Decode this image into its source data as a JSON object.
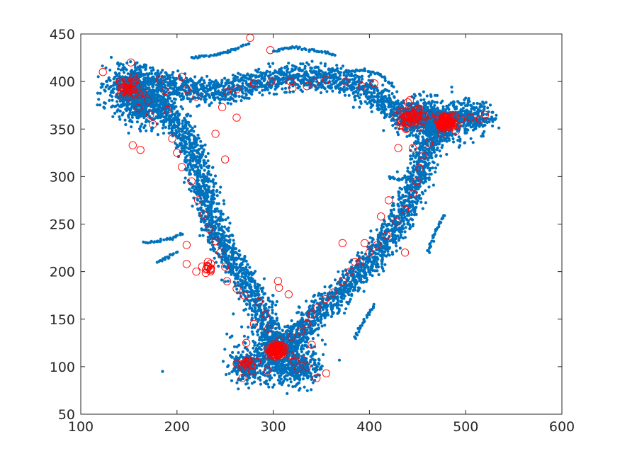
{
  "chart_data": {
    "type": "scatter",
    "title": "",
    "xlabel": "",
    "ylabel": "",
    "xlim": [
      100,
      600
    ],
    "ylim": [
      50,
      450
    ],
    "xticks": [
      "100",
      "200",
      "300",
      "400",
      "500",
      "600"
    ],
    "yticks": [
      "50",
      "100",
      "150",
      "200",
      "250",
      "300",
      "350",
      "400",
      "450"
    ],
    "grid": false,
    "legend": "none",
    "series": [
      {
        "marker": "filled-dot",
        "color": "#0072BD",
        "path_waypoints": [
          [
            145,
            405
          ],
          [
            148,
            395
          ],
          [
            160,
            385
          ],
          [
            180,
            375
          ],
          [
            195,
            365
          ],
          [
            205,
            350
          ],
          [
            215,
            330
          ],
          [
            222,
            310
          ],
          [
            228,
            290
          ],
          [
            232,
            270
          ],
          [
            238,
            250
          ],
          [
            245,
            232
          ],
          [
            255,
            215
          ],
          [
            265,
            200
          ],
          [
            275,
            185
          ],
          [
            285,
            165
          ],
          [
            293,
            145
          ],
          [
            300,
            125
          ],
          [
            305,
            115
          ],
          [
            315,
            125
          ],
          [
            330,
            140
          ],
          [
            345,
            155
          ],
          [
            360,
            170
          ],
          [
            375,
            182
          ],
          [
            390,
            200
          ],
          [
            405,
            215
          ],
          [
            418,
            232
          ],
          [
            430,
            250
          ],
          [
            438,
            268
          ],
          [
            445,
            285
          ],
          [
            452,
            305
          ],
          [
            458,
            325
          ],
          [
            465,
            340
          ],
          [
            475,
            355
          ],
          [
            455,
            362
          ],
          [
            440,
            365
          ],
          [
            420,
            375
          ],
          [
            405,
            385
          ],
          [
            390,
            395
          ],
          [
            370,
            402
          ],
          [
            350,
            405
          ],
          [
            325,
            405
          ],
          [
            300,
            402
          ],
          [
            280,
            398
          ],
          [
            260,
            392
          ],
          [
            240,
            388
          ],
          [
            220,
            392
          ],
          [
            195,
            395
          ],
          [
            170,
            400
          ],
          [
            150,
            408
          ]
        ],
        "clusters": [
          {
            "x": 150,
            "y": 392,
            "spread": 14
          },
          {
            "x": 165,
            "y": 375,
            "spread": 14
          },
          {
            "x": 302,
            "y": 112,
            "spread": 18
          },
          {
            "x": 275,
            "y": 100,
            "spread": 10
          },
          {
            "x": 325,
            "y": 100,
            "spread": 12
          },
          {
            "x": 470,
            "y": 358,
            "spread": 15
          },
          {
            "x": 505,
            "y": 362,
            "spread": 12
          },
          {
            "x": 445,
            "y": 360,
            "spread": 10
          }
        ],
        "excursions": [
          [
            [
              275,
              440
            ],
            [
              255,
              432
            ],
            [
              240,
              428
            ],
            [
              215,
              425
            ]
          ],
          [
            [
              300,
              432
            ],
            [
              320,
              436
            ],
            [
              345,
              432
            ],
            [
              365,
              428
            ]
          ],
          [
            [
              375,
              410
            ],
            [
              395,
              412
            ],
            [
              410,
              408
            ],
            [
              425,
              395
            ]
          ],
          [
            [
              165,
              230
            ],
            [
              180,
              232
            ],
            [
              195,
              235
            ],
            [
              205,
              240
            ]
          ],
          [
            [
              180,
              210
            ],
            [
              190,
              215
            ],
            [
              200,
              220
            ]
          ],
          [
            [
              385,
              130
            ],
            [
              395,
              150
            ],
            [
              405,
              165
            ]
          ],
          [
            [
              420,
              300
            ],
            [
              430,
              296
            ],
            [
              440,
              300
            ]
          ],
          [
            [
              460,
              220
            ],
            [
              470,
              245
            ],
            [
              478,
              260
            ]
          ],
          [
            [
              215,
              285
            ],
            [
              222,
              282
            ],
            [
              230,
              278
            ]
          ],
          [
            [
              185,
              95
            ]
          ]
        ]
      },
      {
        "marker": "open-circle",
        "color": "#FF0000",
        "points": [
          [
            123,
            410
          ],
          [
            152,
            420
          ],
          [
            148,
            398
          ],
          [
            150,
            390
          ],
          [
            155,
            405
          ],
          [
            158,
            395
          ],
          [
            165,
            388
          ],
          [
            170,
            380
          ],
          [
            160,
            372
          ],
          [
            172,
            365
          ],
          [
            182,
            402
          ],
          [
            188,
            390
          ],
          [
            205,
            405
          ],
          [
            190,
            370
          ],
          [
            195,
            340
          ],
          [
            200,
            325
          ],
          [
            205,
            310
          ],
          [
            215,
            295
          ],
          [
            222,
            275
          ],
          [
            228,
            260
          ],
          [
            233,
            245
          ],
          [
            240,
            232
          ],
          [
            245,
            220
          ],
          [
            250,
            205
          ],
          [
            210,
            208
          ],
          [
            220,
            200
          ],
          [
            235,
            203
          ],
          [
            252,
            190
          ],
          [
            262,
            182
          ],
          [
            270,
            175
          ],
          [
            285,
            168
          ],
          [
            292,
            155
          ],
          [
            295,
            140
          ],
          [
            280,
            145
          ],
          [
            272,
            125
          ],
          [
            270,
            104
          ],
          [
            262,
            103
          ],
          [
            278,
            95
          ],
          [
            283,
            105
          ],
          [
            268,
            88
          ],
          [
            294,
            96
          ],
          [
            298,
            115
          ],
          [
            302,
            118
          ],
          [
            308,
            114
          ],
          [
            312,
            120
          ],
          [
            318,
            112
          ],
          [
            322,
            105
          ],
          [
            326,
            98
          ],
          [
            330,
            108
          ],
          [
            335,
            100
          ],
          [
            329,
            137
          ],
          [
            335,
            145
          ],
          [
            340,
            155
          ],
          [
            346,
            162
          ],
          [
            354,
            171
          ],
          [
            362,
            178
          ],
          [
            372,
            190
          ],
          [
            380,
            200
          ],
          [
            390,
            210
          ],
          [
            400,
            220
          ],
          [
            408,
            228
          ],
          [
            418,
            238
          ],
          [
            428,
            252
          ],
          [
            437,
            265
          ],
          [
            445,
            282
          ],
          [
            449,
            295
          ],
          [
            452,
            309
          ],
          [
            456,
            322
          ],
          [
            462,
            335
          ],
          [
            430,
            330
          ],
          [
            438,
            350
          ],
          [
            442,
            365
          ],
          [
            448,
            360
          ],
          [
            455,
            358
          ],
          [
            462,
            365
          ],
          [
            470,
            360
          ],
          [
            478,
            355
          ],
          [
            482,
            352
          ],
          [
            486,
            362
          ],
          [
            490,
            348
          ],
          [
            475,
            345
          ],
          [
            495,
            360
          ],
          [
            505,
            362
          ],
          [
            515,
            360
          ],
          [
            520,
            365
          ],
          [
            440,
            378
          ],
          [
            432,
            368
          ],
          [
            405,
            398
          ],
          [
            392,
            395
          ],
          [
            375,
            400
          ],
          [
            355,
            402
          ],
          [
            335,
            395
          ],
          [
            318,
            400
          ],
          [
            298,
            400
          ],
          [
            280,
            398
          ],
          [
            262,
            392
          ],
          [
            252,
            389
          ],
          [
            276,
            446
          ],
          [
            297,
            433
          ],
          [
            320,
            393
          ],
          [
            343,
            399
          ],
          [
            220,
            384
          ],
          [
            210,
            392
          ],
          [
            175,
            355
          ],
          [
            162,
            328
          ],
          [
            154,
            333
          ],
          [
            445,
            330
          ],
          [
            437,
            220
          ],
          [
            395,
            230
          ],
          [
            385,
            210
          ],
          [
            372,
            230
          ],
          [
            210,
            228
          ],
          [
            247,
            373
          ],
          [
            262,
            362
          ],
          [
            306,
            183
          ],
          [
            240,
            345
          ],
          [
            250,
            318
          ],
          [
            412,
            258
          ],
          [
            420,
            275
          ],
          [
            316,
            176
          ],
          [
            305,
            190
          ],
          [
            340,
            123
          ],
          [
            345,
            88
          ],
          [
            355,
            93
          ],
          [
            319,
            131
          ]
        ]
      }
    ]
  }
}
